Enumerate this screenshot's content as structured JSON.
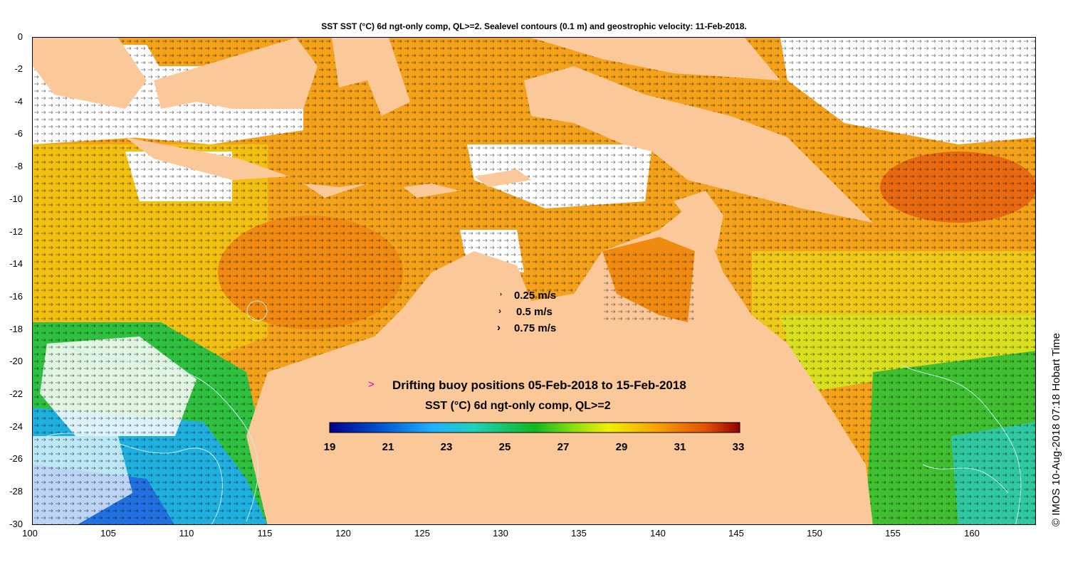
{
  "title": "SST SST (°C) 6d ngt-only comp, QL>=2. Sealevel contours (0.1 m) and geostrophic velocity: 11-Feb-2018.",
  "velocity_legend": [
    "0.25 m/s",
    "0.5 m/s",
    "0.75 m/s"
  ],
  "buoy_legend": {
    "symbol": ">",
    "label": "Drifting buoy positions 05-Feb-2018 to 15-Feb-2018",
    "symbol_color": "#cc00cc"
  },
  "colorbar": {
    "label": "SST (°C) 6d ngt-only comp, QL>=2",
    "min": 19,
    "max": 33,
    "ticks": [
      "19",
      "21",
      "23",
      "25",
      "27",
      "29",
      "31",
      "33"
    ]
  },
  "credit": "© IMOS 10-Aug-2018 07:18 Hobart Time",
  "y_axis_ticks": [
    "0",
    "-2",
    "-4",
    "-6",
    "-8",
    "-10",
    "-12",
    "-14",
    "-16",
    "-18",
    "-20",
    "-22",
    "-24",
    "-26",
    "-28",
    "-30"
  ],
  "x_axis_ticks": [
    "100",
    "105",
    "110",
    "115",
    "120",
    "125",
    "130",
    "135",
    "140",
    "145",
    "150",
    "155",
    "160"
  ],
  "map_extent": {
    "lon_min": 100,
    "lon_max": 164,
    "lat_min": -30,
    "lat_max": 0
  },
  "colors": {
    "land": "#fbc999",
    "no_data": "#ffffff",
    "arrows": "#000000",
    "contours": "#bfeeee",
    "rivers": "#22dddd"
  }
}
